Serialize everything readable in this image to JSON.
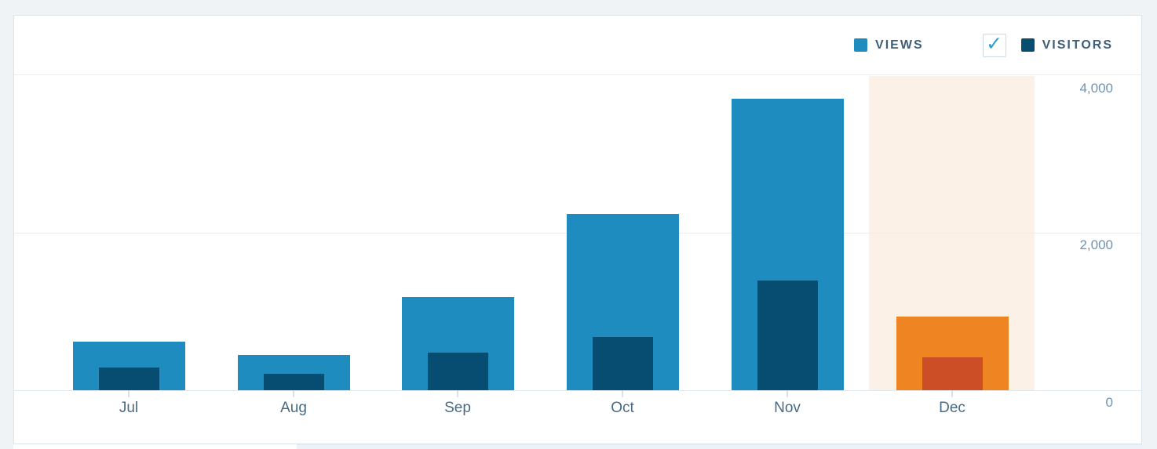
{
  "legend": {
    "views_label": "VIEWS",
    "visitors_label": "VISITORS",
    "visitors_checked": true
  },
  "colors": {
    "views": "#1e8cbe",
    "visitors": "#074d72",
    "views_highlighted": "#ef8522",
    "visitors_highlighted": "#cc4e26",
    "highlight_band": "#fcf1e6",
    "checkbox_check": "#2ba1d6",
    "axis_label": "#7093b0",
    "month_label": "#4a6b84"
  },
  "chart_data": {
    "type": "bar",
    "categories": [
      "Jul",
      "Aug",
      "Sep",
      "Oct",
      "Nov",
      "Dec"
    ],
    "series": [
      {
        "name": "Views",
        "values": [
          620,
          450,
          1190,
          2240,
          3710,
          940
        ]
      },
      {
        "name": "Visitors",
        "values": [
          290,
          210,
          480,
          680,
          1400,
          420
        ]
      }
    ],
    "ylim": [
      0,
      4000
    ],
    "yticks": [
      {
        "label": "4,000",
        "value": 4000
      },
      {
        "label": "2,000",
        "value": 2000
      },
      {
        "label": "0",
        "value": 0
      }
    ],
    "grid": "horizontal",
    "legend_position": "top-right",
    "highlighted_category": "Dec"
  }
}
